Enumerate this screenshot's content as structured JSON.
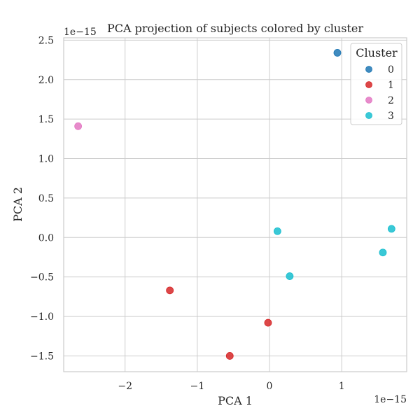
{
  "chart_data": {
    "type": "scatter",
    "title": "PCA projection of subjects colored by cluster",
    "xlabel": "PCA 1",
    "ylabel": "PCA 2",
    "x_offset_label": "1e−15",
    "y_offset_label": "1e−15",
    "xlim": [
      -2.85,
      1.9
    ],
    "ylim": [
      -1.7,
      2.53
    ],
    "x_ticks": [
      -2,
      -1,
      0,
      1
    ],
    "x_tick_labels": [
      "−2",
      "−1",
      "0",
      "1"
    ],
    "y_ticks": [
      -1.5,
      -1.0,
      -0.5,
      0.0,
      0.5,
      1.0,
      1.5,
      2.0,
      2.5
    ],
    "y_tick_labels": [
      "−1.5",
      "−1.0",
      "−0.5",
      "0.0",
      "0.5",
      "1.0",
      "1.5",
      "2.0",
      "2.5"
    ],
    "grid": true,
    "legend": {
      "title": "Cluster",
      "placement": "top-right"
    },
    "series": [
      {
        "name": "0",
        "color": "#1f77b4",
        "points": [
          [
            0.94,
            2.34
          ]
        ]
      },
      {
        "name": "1",
        "color": "#d62728",
        "points": [
          [
            -1.38,
            -0.67
          ],
          [
            -0.02,
            -1.08
          ],
          [
            -0.55,
            -1.5
          ]
        ]
      },
      {
        "name": "2",
        "color": "#e377c2",
        "points": [
          [
            -2.65,
            1.41
          ]
        ]
      },
      {
        "name": "3",
        "color": "#17becf",
        "points": [
          [
            0.11,
            0.08
          ],
          [
            0.28,
            -0.49
          ],
          [
            1.57,
            -0.19
          ],
          [
            1.69,
            0.11
          ]
        ]
      }
    ]
  }
}
